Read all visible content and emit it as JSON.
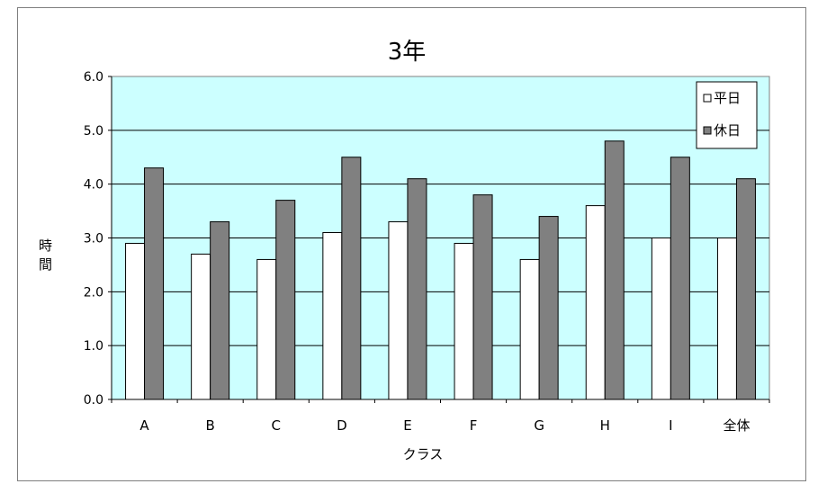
{
  "chart_data": {
    "type": "bar",
    "title": "3年",
    "xlabel": "クラス",
    "ylabel": "時間",
    "categories": [
      "A",
      "B",
      "C",
      "D",
      "E",
      "F",
      "G",
      "H",
      "I",
      "全体"
    ],
    "series": [
      {
        "name": "平日",
        "color": "#ffffff",
        "values": [
          2.9,
          2.7,
          2.6,
          3.1,
          3.3,
          2.9,
          2.6,
          3.6,
          3.0,
          3.0
        ]
      },
      {
        "name": "休日",
        "color": "#808080",
        "values": [
          4.3,
          3.3,
          3.7,
          4.5,
          4.1,
          3.8,
          3.4,
          4.8,
          4.5,
          4.1
        ]
      }
    ],
    "ylim": [
      0,
      6
    ],
    "yticks": [
      "0.0",
      "1.0",
      "2.0",
      "3.0",
      "4.0",
      "5.0",
      "6.0"
    ],
    "plot_background": "#ccffff",
    "grid": true,
    "legend_position": "top-right"
  }
}
